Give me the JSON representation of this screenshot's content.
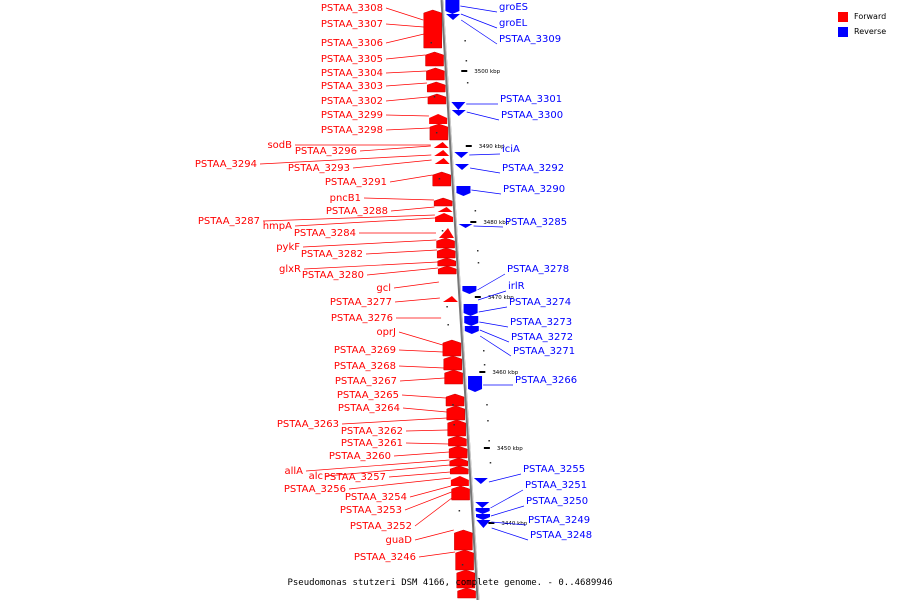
{
  "colors": {
    "forward": "#ff0000",
    "reverse": "#0000ff",
    "backbone": "#999999"
  },
  "legend": [
    {
      "label": "Forward",
      "color": "#ff0000"
    },
    {
      "label": "Reverse",
      "color": "#0000ff"
    }
  ],
  "caption": "Pseudomonas stutzeri DSM 4166, complete genome. - 0..4689946",
  "ticks": [
    "3500 kbp",
    "3490 kbp",
    "3480 kbp",
    "3470 kbp",
    "3460 kbp",
    "3450 kbp",
    "3440 kbp"
  ],
  "forward_labels": [
    "PSTAA_3308",
    "PSTAA_3307",
    "PSTAA_3306",
    "PSTAA_3305",
    "PSTAA_3304",
    "PSTAA_3303",
    "PSTAA_3302",
    "PSTAA_3299",
    "PSTAA_3298",
    "sodB",
    "PSTAA_3296",
    "PSTAA_3294",
    "PSTAA_3293",
    "PSTAA_3291",
    "pncB1",
    "PSTAA_3288",
    "PSTAA_3287",
    "hmpA",
    "PSTAA_3284",
    "pykF",
    "PSTAA_3282",
    "glxR",
    "PSTAA_3280",
    "gcl",
    "PSTAA_3277",
    "PSTAA_3276",
    "oprJ",
    "PSTAA_3269",
    "PSTAA_3268",
    "PSTAA_3267",
    "PSTAA_3265",
    "PSTAA_3264",
    "PSTAA_3263",
    "PSTAA_3262",
    "PSTAA_3261",
    "PSTAA_3260",
    "allA",
    "alc",
    "PSTAA_3257",
    "PSTAA_3256",
    "PSTAA_3254",
    "PSTAA_3253",
    "PSTAA_3252",
    "guaD",
    "PSTAA_3246"
  ],
  "reverse_labels": [
    "groES",
    "groEL",
    "PSTAA_3309",
    "PSTAA_3301",
    "PSTAA_3300",
    "iciA",
    "PSTAA_3292",
    "PSTAA_3290",
    "PSTAA_3285",
    "PSTAA_3278",
    "irlR",
    "PSTAA_3274",
    "PSTAA_3273",
    "PSTAA_3272",
    "PSTAA_3271",
    "PSTAA_3266",
    "PSTAA_3255",
    "PSTAA_3251",
    "PSTAA_3250",
    "PSTAA_3249",
    "PSTAA_3248"
  ]
}
